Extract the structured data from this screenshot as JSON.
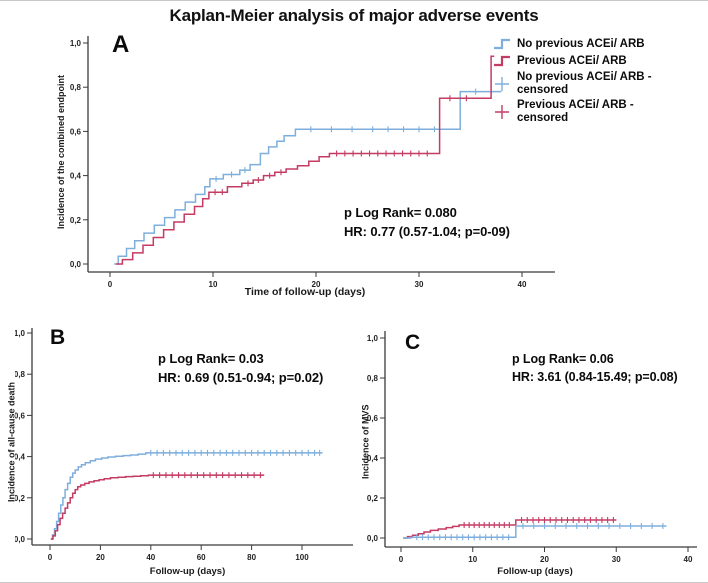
{
  "title": "Kaplan-Meier analysis of major adverse events",
  "colors": {
    "no_previous": "#7eafdc",
    "previous": "#c43b63",
    "axis": "#3a3a3a",
    "tick_text": "#222222"
  },
  "legend": {
    "items": [
      {
        "label": "No previous ACEi/ ARB",
        "marker": "step",
        "color_key": "no_previous"
      },
      {
        "label": "Previous ACEi/ ARB",
        "marker": "step",
        "color_key": "previous"
      },
      {
        "label": "No previous ACEi/ ARB - censored",
        "marker": "plus",
        "color_key": "no_previous"
      },
      {
        "label": "Previous ACEi/ ARB - censored",
        "marker": "plus",
        "color_key": "previous"
      }
    ]
  },
  "chart_data": [
    {
      "id": "A",
      "type": "line",
      "subtype": "kaplan-meier-step",
      "panel_label": "A",
      "ylabel": "Incidence of the combined endpoint",
      "xlabel": "Time of follow-up (days)",
      "xlim": [
        0,
        40
      ],
      "ylim": [
        0,
        1
      ],
      "grid": false,
      "xticks": [
        {
          "v": 0,
          "label": "0"
        },
        {
          "v": 10,
          "label": "10"
        },
        {
          "v": 20,
          "label": "20"
        },
        {
          "v": 30,
          "label": "30"
        },
        {
          "v": 40,
          "label": "40"
        }
      ],
      "yticks": [
        {
          "v": 0,
          "label": "0,0"
        },
        {
          "v": 0.2,
          "label": "0,2"
        },
        {
          "v": 0.4,
          "label": "0,4"
        },
        {
          "v": 0.6,
          "label": "0,6"
        },
        {
          "v": 0.8,
          "label": "0,8"
        },
        {
          "v": 1,
          "label": "1,0"
        }
      ],
      "stats": {
        "logrank": "p Log Rank= 0.080",
        "hr": "HR: 0.77 (0.57-1.04; p=0-09)"
      },
      "series": [
        {
          "name": "No previous ACEi/ ARB",
          "color_key": "no_previous",
          "steps": [
            [
              0.4,
              0
            ],
            [
              0.8,
              0.035
            ],
            [
              1.6,
              0.07
            ],
            [
              2.4,
              0.105
            ],
            [
              3.3,
              0.14
            ],
            [
              4.3,
              0.175
            ],
            [
              5.3,
              0.21
            ],
            [
              6.3,
              0.245
            ],
            [
              7.3,
              0.28
            ],
            [
              8.3,
              0.315
            ],
            [
              9.2,
              0.35
            ],
            [
              9.7,
              0.385
            ],
            [
              11,
              0.405
            ],
            [
              12.6,
              0.425
            ],
            [
              13.6,
              0.45
            ],
            [
              14.6,
              0.5
            ],
            [
              15.4,
              0.53
            ],
            [
              16.2,
              0.555
            ],
            [
              16.9,
              0.58
            ],
            [
              18,
              0.61
            ],
            [
              34,
              0.78
            ]
          ],
          "end": 38,
          "censored": [
            10.3,
            11.8,
            13.1,
            19.5,
            21.5,
            23.5,
            25.5,
            27,
            28.5,
            30,
            31.5,
            35.5,
            37
          ]
        },
        {
          "name": "Previous ACEi/ ARB",
          "color_key": "previous",
          "steps": [
            [
              0.6,
              0
            ],
            [
              1.2,
              0.02
            ],
            [
              2.2,
              0.05
            ],
            [
              3.2,
              0.085
            ],
            [
              4.2,
              0.12
            ],
            [
              5.2,
              0.155
            ],
            [
              6.2,
              0.19
            ],
            [
              7.2,
              0.225
            ],
            [
              8.2,
              0.26
            ],
            [
              9,
              0.295
            ],
            [
              9.6,
              0.325
            ],
            [
              11.4,
              0.35
            ],
            [
              12.8,
              0.365
            ],
            [
              13.9,
              0.38
            ],
            [
              14.9,
              0.4
            ],
            [
              16,
              0.415
            ],
            [
              17.1,
              0.43
            ],
            [
              18.2,
              0.445
            ],
            [
              19.3,
              0.465
            ],
            [
              20.3,
              0.485
            ],
            [
              21.3,
              0.5
            ],
            [
              32,
              0.75
            ],
            [
              37,
              0.94
            ]
          ],
          "end": 37.3,
          "censored": [
            10.2,
            10.9,
            13.4,
            14.4,
            15.5,
            16.6,
            22,
            22.8,
            23.6,
            24.4,
            25.2,
            26,
            26.8,
            27.6,
            28.4,
            29.2,
            30,
            30.8,
            33,
            34.6
          ]
        }
      ]
    },
    {
      "id": "B",
      "type": "line",
      "subtype": "kaplan-meier-step",
      "panel_label": "B",
      "ylabel": "Incidence of all-cause death",
      "xlabel": "Follow-up (days)",
      "xlim": [
        0,
        100
      ],
      "ylim": [
        0,
        1
      ],
      "grid": false,
      "xticks": [
        {
          "v": 0,
          "label": "0"
        },
        {
          "v": 20,
          "label": "20"
        },
        {
          "v": 40,
          "label": "40"
        },
        {
          "v": 60,
          "label": "60"
        },
        {
          "v": 80,
          "label": "80"
        },
        {
          "v": 100,
          "label": "100"
        }
      ],
      "yticks": [
        {
          "v": 0,
          "label": "0,0"
        },
        {
          "v": 0.2,
          "label": "0,2"
        },
        {
          "v": 0.4,
          "label": "0,4"
        },
        {
          "v": 0.6,
          "label": "0,6"
        },
        {
          "v": 0.8,
          "label": "0,8"
        },
        {
          "v": 1,
          "label": "1,0"
        }
      ],
      "stats": {
        "logrank": "p Log Rank= 0.03",
        "hr": "HR: 0.69 (0.51-0.94; p=0.02)"
      },
      "series": [
        {
          "name": "No previous ACEi/ ARB",
          "color_key": "no_previous",
          "steps": [
            [
              0.3,
              0
            ],
            [
              1,
              0.02
            ],
            [
              1.8,
              0.05
            ],
            [
              2.6,
              0.085
            ],
            [
              3.4,
              0.125
            ],
            [
              4.3,
              0.165
            ],
            [
              5.1,
              0.2
            ],
            [
              6,
              0.24
            ],
            [
              7,
              0.27
            ],
            [
              8,
              0.3
            ],
            [
              9,
              0.32
            ],
            [
              10,
              0.335
            ],
            [
              11.2,
              0.35
            ],
            [
              12.5,
              0.36
            ],
            [
              14,
              0.37
            ],
            [
              16,
              0.38
            ],
            [
              18,
              0.388
            ],
            [
              20.5,
              0.393
            ],
            [
              23,
              0.398
            ],
            [
              26,
              0.402
            ],
            [
              29,
              0.405
            ],
            [
              32,
              0.408
            ],
            [
              35,
              0.412
            ],
            [
              38,
              0.418
            ]
          ],
          "end": 108,
          "censored": [
            40,
            42.5,
            45,
            47.5,
            50,
            52.5,
            55,
            57.5,
            60,
            62.5,
            65,
            67.5,
            70,
            72.5,
            75,
            77.5,
            80,
            82.5,
            85,
            87.5,
            90,
            92.5,
            95,
            97.5,
            100,
            102.5,
            105,
            107
          ]
        },
        {
          "name": "Previous ACEi/ ARB",
          "color_key": "previous",
          "steps": [
            [
              0.3,
              0
            ],
            [
              1.2,
              0.015
            ],
            [
              2.1,
              0.04
            ],
            [
              3,
              0.07
            ],
            [
              4,
              0.1
            ],
            [
              5,
              0.125
            ],
            [
              6,
              0.15
            ],
            [
              7,
              0.175
            ],
            [
              8,
              0.2
            ],
            [
              9,
              0.222
            ],
            [
              10,
              0.24
            ],
            [
              11,
              0.254
            ],
            [
              12.2,
              0.262
            ],
            [
              13.8,
              0.27
            ],
            [
              15.5,
              0.277
            ],
            [
              17.5,
              0.283
            ],
            [
              19.5,
              0.288
            ],
            [
              21.5,
              0.292
            ],
            [
              24,
              0.297
            ],
            [
              27,
              0.3
            ],
            [
              30,
              0.303
            ],
            [
              33,
              0.305
            ],
            [
              36,
              0.307
            ],
            [
              39,
              0.31
            ]
          ],
          "end": 85,
          "censored": [
            41,
            43.5,
            46,
            48.5,
            51,
            53.5,
            56,
            58.5,
            61,
            63.5,
            66,
            68.5,
            71,
            73.5,
            76,
            78.5,
            81,
            83.5
          ]
        }
      ]
    },
    {
      "id": "C",
      "type": "line",
      "subtype": "kaplan-meier-step",
      "panel_label": "C",
      "ylabel": "Incidence of MVS",
      "xlabel": "Follow-up (days)",
      "xlim": [
        0,
        40
      ],
      "ylim": [
        0,
        1
      ],
      "grid": false,
      "xticks": [
        {
          "v": 0,
          "label": "0"
        },
        {
          "v": 10,
          "label": "10"
        },
        {
          "v": 20,
          "label": "20"
        },
        {
          "v": 30,
          "label": "30"
        },
        {
          "v": 40,
          "label": "40"
        }
      ],
      "yticks": [
        {
          "v": 0,
          "label": "0,0"
        },
        {
          "v": 0.2,
          "label": "0,2"
        },
        {
          "v": 0.4,
          "label": "0,4"
        },
        {
          "v": 0.6,
          "label": "0,6"
        },
        {
          "v": 0.8,
          "label": "0,8"
        },
        {
          "v": 1,
          "label": "1,0"
        }
      ],
      "stats": {
        "logrank": "p Log Rank= 0.06",
        "hr": "HR: 3.61 (0.84-15.49; p=0.08)"
      },
      "series": [
        {
          "name": "Previous ACEi/ ARB",
          "color_key": "previous",
          "steps": [
            [
              0.3,
              0
            ],
            [
              0.9,
              0.007
            ],
            [
              1.6,
              0.014
            ],
            [
              2.4,
              0.021
            ],
            [
              3.2,
              0.03
            ],
            [
              4.1,
              0.038
            ],
            [
              5.2,
              0.045
            ],
            [
              6.3,
              0.052
            ],
            [
              7.2,
              0.058
            ],
            [
              8.1,
              0.065
            ],
            [
              16,
              0.09
            ]
          ],
          "end": 30,
          "censored": [
            8.8,
            9.5,
            10.2,
            10.9,
            11.6,
            12.3,
            13,
            13.7,
            14.4,
            15.1,
            16.8,
            17.6,
            18.4,
            19.2,
            20,
            20.8,
            21.6,
            22.4,
            23.2,
            24,
            24.8,
            25.6,
            26.4,
            27.2,
            28,
            28.8,
            29.6
          ]
        },
        {
          "name": "No previous ACEi/ ARB",
          "color_key": "no_previous",
          "steps": [
            [
              0.3,
              0
            ],
            [
              1.4,
              0.004
            ],
            [
              16,
              0.06
            ]
          ],
          "end": 37,
          "censored": [
            2.2,
            3,
            3.8,
            4.6,
            5.4,
            6.2,
            7,
            7.8,
            8.6,
            9.4,
            10.2,
            11,
            11.8,
            12.6,
            13.4,
            14.2,
            15,
            17,
            18.5,
            20,
            21.5,
            23,
            24.5,
            26,
            27.5,
            29,
            30.5,
            32,
            33.5,
            35,
            36.5
          ]
        }
      ]
    }
  ]
}
